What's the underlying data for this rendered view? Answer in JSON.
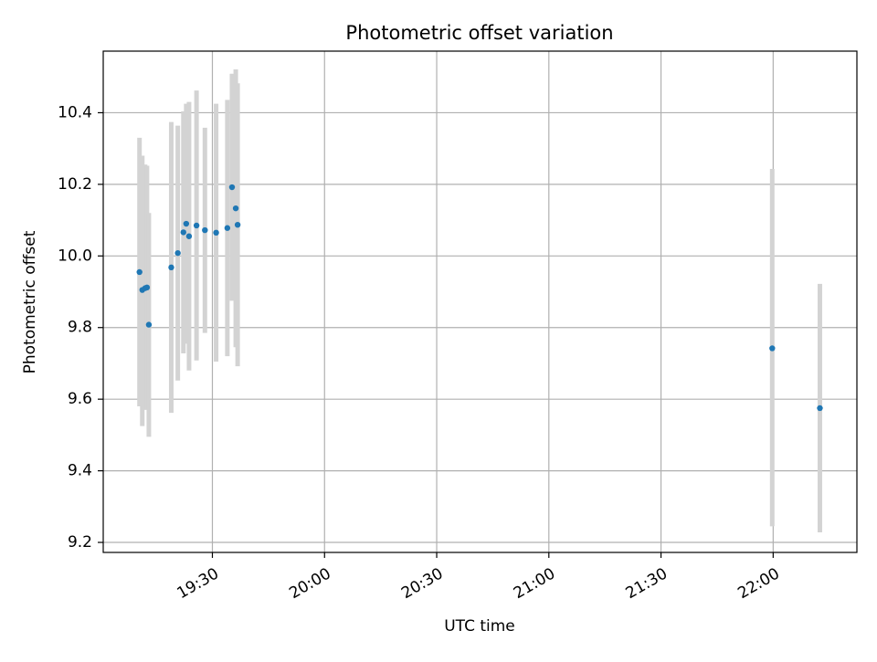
{
  "chart_data": {
    "type": "scatter",
    "title": "Photometric offset variation",
    "xlabel": "UTC time",
    "ylabel": "Photometric offset",
    "xlim": [
      "19:00:48",
      "22:22:24"
    ],
    "ylim": [
      9.172,
      10.572
    ],
    "grid": true,
    "x_ticks": [
      "19:30",
      "20:00",
      "20:30",
      "21:00",
      "21:30",
      "22:00"
    ],
    "y_ticks": [
      "9.2",
      "9.4",
      "9.6",
      "9.8",
      "10.0",
      "10.2",
      "10.4"
    ],
    "series": [
      {
        "points": [
          {
            "x": "19:10:30",
            "y": 9.955,
            "low": 9.58,
            "high": 10.33
          },
          {
            "x": "19:11:15",
            "y": 9.905,
            "low": 9.525,
            "high": 10.28
          },
          {
            "x": "19:12:00",
            "y": 9.91,
            "low": 9.57,
            "high": 10.255
          },
          {
            "x": "19:12:30",
            "y": 9.912,
            "low": 9.572,
            "high": 10.252
          },
          {
            "x": "19:13:00",
            "y": 9.808,
            "low": 9.495,
            "high": 10.12
          },
          {
            "x": "19:19:00",
            "y": 9.968,
            "low": 9.562,
            "high": 10.374
          },
          {
            "x": "19:20:45",
            "y": 10.008,
            "low": 9.652,
            "high": 10.364
          },
          {
            "x": "19:22:15",
            "y": 10.066,
            "low": 9.728,
            "high": 10.404
          },
          {
            "x": "19:23:00",
            "y": 10.09,
            "low": 9.755,
            "high": 10.425
          },
          {
            "x": "19:23:45",
            "y": 10.055,
            "low": 9.68,
            "high": 10.43
          },
          {
            "x": "19:25:45",
            "y": 10.085,
            "low": 9.708,
            "high": 10.462
          },
          {
            "x": "19:28:00",
            "y": 10.072,
            "low": 9.785,
            "high": 10.358
          },
          {
            "x": "19:31:00",
            "y": 10.065,
            "low": 9.705,
            "high": 10.425
          },
          {
            "x": "19:34:00",
            "y": 10.078,
            "low": 9.72,
            "high": 10.436
          },
          {
            "x": "19:35:15",
            "y": 10.192,
            "low": 9.875,
            "high": 10.509
          },
          {
            "x": "19:36:15",
            "y": 10.133,
            "low": 9.745,
            "high": 10.521
          },
          {
            "x": "19:36:45",
            "y": 10.087,
            "low": 9.692,
            "high": 10.482
          },
          {
            "x": "21:59:45",
            "y": 9.742,
            "low": 9.245,
            "high": 10.243
          },
          {
            "x": "22:12:30",
            "y": 9.575,
            "low": 9.228,
            "high": 9.922
          }
        ]
      }
    ],
    "colors": {
      "point": "#1f77b4",
      "errorbar": "#d3d3d3",
      "grid": "#b0b0b0",
      "axes": "#000000"
    }
  }
}
